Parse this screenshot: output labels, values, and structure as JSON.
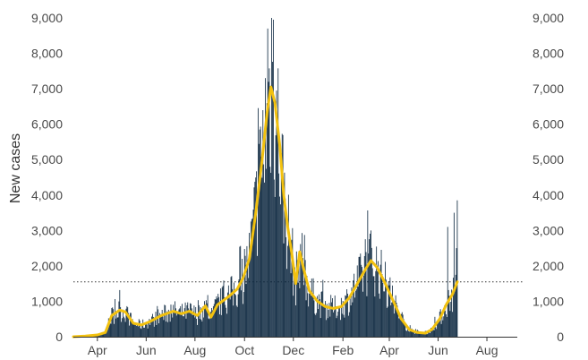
{
  "chart_data": {
    "type": "bar",
    "ylabel": "New cases",
    "xlabel": "",
    "title": "",
    "ylim": [
      0,
      9000
    ],
    "y_ticks": [
      0,
      1000,
      2000,
      3000,
      4000,
      5000,
      6000,
      7000,
      8000,
      9000
    ],
    "y_tick_labels": [
      "0",
      "1,000",
      "2,000",
      "3,000",
      "4,000",
      "5,000",
      "6,000",
      "7,000",
      "8,000",
      "9,000"
    ],
    "x_tick_labels": [
      {
        "label": "Apr",
        "day": 30
      },
      {
        "label": "Jun",
        "day": 91
      },
      {
        "label": "Aug",
        "day": 152
      },
      {
        "label": "Oct",
        "day": 214
      },
      {
        "label": "Dec",
        "day": 275
      },
      {
        "label": "Feb",
        "day": 337
      },
      {
        "label": "Apr",
        "day": 395
      },
      {
        "label": "Jun",
        "day": 456
      },
      {
        "label": "Aug",
        "day": 517
      }
    ],
    "x_range_days": [
      0,
      555
    ],
    "reference_line": 1550,
    "colors": {
      "bars": "#0d2840",
      "average": "#f2c10f",
      "text": "#4a4a4a",
      "reference": "#333333"
    },
    "series": [
      {
        "name": "",
        "kind": "bars",
        "note": "daily values, one per day",
        "values": []
      },
      {
        "name": "",
        "kind": "line",
        "points": [
          [
            0,
            0
          ],
          [
            15,
            20
          ],
          [
            30,
            50
          ],
          [
            40,
            120
          ],
          [
            48,
            600
          ],
          [
            58,
            750
          ],
          [
            65,
            700
          ],
          [
            75,
            380
          ],
          [
            85,
            330
          ],
          [
            95,
            420
          ],
          [
            110,
            600
          ],
          [
            125,
            720
          ],
          [
            135,
            650
          ],
          [
            145,
            720
          ],
          [
            155,
            600
          ],
          [
            165,
            870
          ],
          [
            172,
            550
          ],
          [
            180,
            900
          ],
          [
            195,
            1150
          ],
          [
            205,
            1350
          ],
          [
            212,
            1650
          ],
          [
            220,
            2200
          ],
          [
            228,
            3500
          ],
          [
            236,
            5000
          ],
          [
            242,
            6300
          ],
          [
            247,
            7050
          ],
          [
            252,
            6600
          ],
          [
            258,
            5400
          ],
          [
            263,
            4000
          ],
          [
            268,
            3100
          ],
          [
            273,
            2350
          ],
          [
            278,
            1500
          ],
          [
            283,
            2400
          ],
          [
            288,
            1900
          ],
          [
            295,
            1300
          ],
          [
            305,
            1000
          ],
          [
            315,
            850
          ],
          [
            325,
            800
          ],
          [
            335,
            850
          ],
          [
            345,
            1100
          ],
          [
            355,
            1500
          ],
          [
            365,
            1900
          ],
          [
            372,
            2150
          ],
          [
            380,
            1950
          ],
          [
            390,
            1500
          ],
          [
            400,
            1000
          ],
          [
            410,
            500
          ],
          [
            420,
            200
          ],
          [
            430,
            120
          ],
          [
            440,
            100
          ],
          [
            448,
            200
          ],
          [
            458,
            500
          ],
          [
            466,
            900
          ],
          [
            474,
            1200
          ],
          [
            480,
            1550
          ]
        ]
      }
    ]
  }
}
